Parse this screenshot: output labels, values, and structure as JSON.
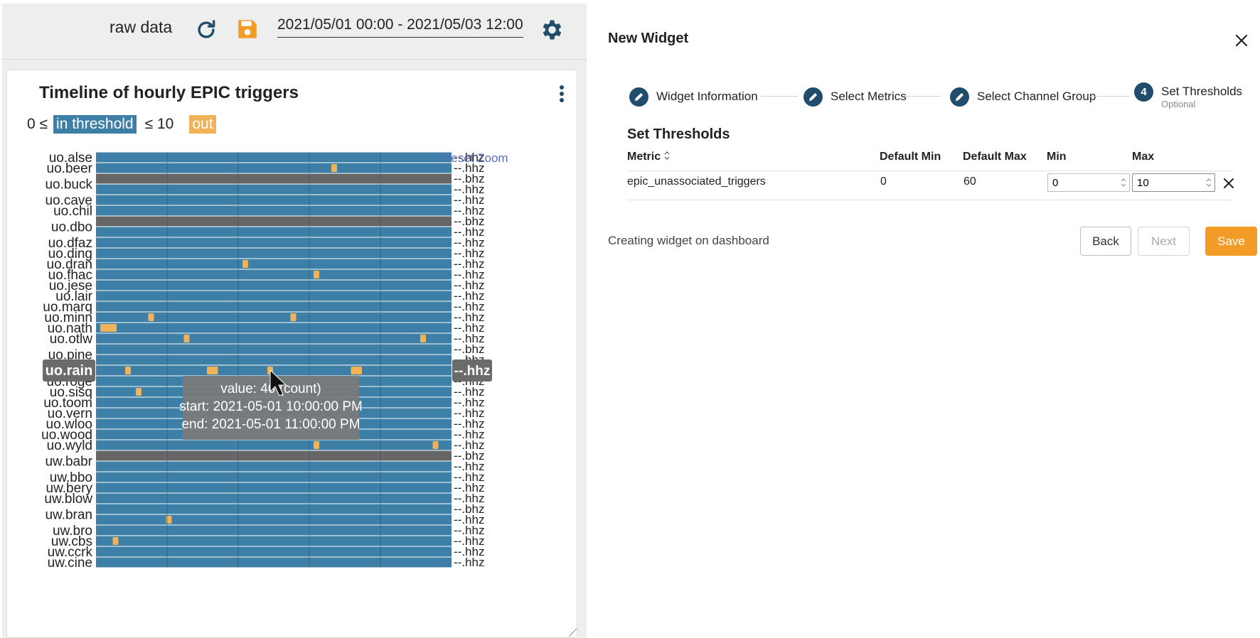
{
  "toolbar": {
    "mode_label": "raw data",
    "date_range": "2021/05/01 00:00 - 2021/05/03 12:00",
    "icons": [
      "refresh-icon",
      "save-icon",
      "gear-icon"
    ]
  },
  "widget": {
    "title": "Timeline of hourly EPIC triggers",
    "legend": {
      "min_prefix": "0 ≤",
      "in_label": "in threshold",
      "max_suffix": "≤ 10",
      "out_label": "out"
    },
    "reset_zoom": "Reset Zoom",
    "colors": {
      "in": "#3d7fa6",
      "out": "#f2b258",
      "no_data": "#666666",
      "highlight_label": "#6b6b6b"
    },
    "highlighted_station": "uo.rain",
    "highlighted_channel": "--.hhz",
    "tooltip": {
      "value": "value: 46 (count)",
      "start": "start: 2021-05-01 10:00:00 PM",
      "end": "end: 2021-05-01 11:00:00 PM"
    }
  },
  "chart_data": {
    "type": "heatmap",
    "title": "Timeline of hourly EPIC triggers",
    "x_range": [
      "2021-05-01 00:00",
      "2021-05-03 12:00"
    ],
    "threshold": {
      "min": 0,
      "max": 10
    },
    "rows": [
      {
        "station": "uo.alse",
        "channel": "--.hhz",
        "status": "in",
        "out_at": []
      },
      {
        "station": "uo.beer",
        "channel": "--.hhz",
        "status": "in",
        "out_at": [
          0.67
        ]
      },
      {
        "station": "uo.buck",
        "channel": "--.bhz",
        "status": "no_data",
        "out_at": []
      },
      {
        "station": "uo.buck",
        "channel": "--.hhz",
        "status": "in",
        "out_at": []
      },
      {
        "station": "uo.cave",
        "channel": "--.hhz",
        "status": "in",
        "out_at": []
      },
      {
        "station": "uo.chil",
        "channel": "--.hhz",
        "status": "in",
        "out_at": []
      },
      {
        "station": "uo.dbo",
        "channel": "--.bhz",
        "status": "no_data",
        "out_at": []
      },
      {
        "station": "uo.dbo",
        "channel": "--.hhz",
        "status": "in",
        "out_at": []
      },
      {
        "station": "uo.dfaz",
        "channel": "--.hhz",
        "status": "in",
        "out_at": []
      },
      {
        "station": "uo.ding",
        "channel": "--.hhz",
        "status": "in",
        "out_at": []
      },
      {
        "station": "uo.dran",
        "channel": "--.hhz",
        "status": "in",
        "out_at": [
          0.42
        ]
      },
      {
        "station": "uo.fhac",
        "channel": "--.hhz",
        "status": "in",
        "out_at": [
          0.62
        ]
      },
      {
        "station": "uo.jese",
        "channel": "--.hhz",
        "status": "in",
        "out_at": []
      },
      {
        "station": "uo.lair",
        "channel": "--.hhz",
        "status": "in",
        "out_at": []
      },
      {
        "station": "uo.marq",
        "channel": "--.hhz",
        "status": "in",
        "out_at": []
      },
      {
        "station": "uo.minn",
        "channel": "--.hhz",
        "status": "in",
        "out_at": [
          0.155,
          0.555
        ]
      },
      {
        "station": "uo.nath",
        "channel": "--.hhz",
        "status": "in",
        "out_at": [
          0.02,
          0.035,
          0.05
        ]
      },
      {
        "station": "uo.otlw",
        "channel": "--.hhz",
        "status": "in",
        "out_at": [
          0.255,
          0.92
        ]
      },
      {
        "station": "uo.pine",
        "channel": "--.bhz",
        "status": "in",
        "out_at": []
      },
      {
        "station": "uo.pine",
        "channel": "--.hhz",
        "status": "in",
        "out_at": []
      },
      {
        "station": "uo.rain",
        "channel": "--.hhz",
        "status": "in",
        "out_at": [
          0.09,
          0.32,
          0.335,
          0.49,
          0.725,
          0.74
        ]
      },
      {
        "station": "uo.roge",
        "channel": "--.hhz",
        "status": "in",
        "out_at": []
      },
      {
        "station": "uo.sisq",
        "channel": "--.hhz",
        "status": "in",
        "out_at": [
          0.12
        ]
      },
      {
        "station": "uo.toom",
        "channel": "--.hhz",
        "status": "in",
        "out_at": []
      },
      {
        "station": "uo.vern",
        "channel": "--.hhz",
        "status": "in",
        "out_at": []
      },
      {
        "station": "uo.wloo",
        "channel": "--.hhz",
        "status": "in",
        "out_at": []
      },
      {
        "station": "uo.wood",
        "channel": "--.hhz",
        "status": "in",
        "out_at": []
      },
      {
        "station": "uo.wyld",
        "channel": "--.hhz",
        "status": "in",
        "out_at": [
          0.62,
          0.955
        ]
      },
      {
        "station": "uw.babr",
        "channel": "--.bhz",
        "status": "no_data",
        "out_at": []
      },
      {
        "station": "uw.babr",
        "channel": "--.hhz",
        "status": "in",
        "out_at": []
      },
      {
        "station": "uw.bbo",
        "channel": "--.hhz",
        "status": "in",
        "out_at": []
      },
      {
        "station": "uw.bery",
        "channel": "--.hhz",
        "status": "in",
        "out_at": []
      },
      {
        "station": "uw.blow",
        "channel": "--.hhz",
        "status": "in",
        "out_at": []
      },
      {
        "station": "uw.bran",
        "channel": "--.bhz",
        "status": "in",
        "out_at": []
      },
      {
        "station": "uw.bran",
        "channel": "--.hhz",
        "status": "in",
        "out_at": [
          0.205
        ]
      },
      {
        "station": "uw.bro",
        "channel": "--.hhz",
        "status": "in",
        "out_at": []
      },
      {
        "station": "uw.cbs",
        "channel": "--.hhz",
        "status": "in",
        "out_at": [
          0.055
        ]
      },
      {
        "station": "uw.ccrk",
        "channel": "--.hhz",
        "status": "in",
        "out_at": []
      },
      {
        "station": "uw.cine",
        "channel": "--.hhz",
        "status": "in",
        "out_at": []
      }
    ],
    "y_tick_labels": [
      "uo.alse",
      "uo.beer",
      "uo.buck",
      "uo.cave",
      "uo.chil",
      "uo.dbo",
      "uo.dfaz",
      "uo.ding",
      "uo.dran",
      "uo.fhac",
      "uo.jese",
      "uo.lair",
      "uo.marq",
      "uo.minn",
      "uo.nath",
      "uo.otlw",
      "uo.pine",
      "uo.rain",
      "uo.roge",
      "uo.sisq",
      "uo.toom",
      "uo.vern",
      "uo.wloo",
      "uo.wood",
      "uo.wyld",
      "uw.babr",
      "uw.bbo",
      "uw.bery",
      "uw.blow",
      "uw.bran",
      "uw.bro",
      "uw.cbs",
      "uw.ccrk",
      "uw.cine"
    ],
    "y_tick_row_index": [
      0,
      1,
      2.5,
      4,
      5,
      6.5,
      8,
      9,
      10,
      11,
      12,
      13,
      14,
      15,
      16,
      17,
      18.5,
      20,
      21,
      22,
      23,
      24,
      25,
      26,
      27,
      28.5,
      30,
      31,
      32,
      33.5,
      35,
      36,
      37,
      38
    ]
  },
  "dialog": {
    "title": "New Widget",
    "steps": [
      {
        "label": "Widget Information",
        "state": "done"
      },
      {
        "label": "Select Metrics",
        "state": "done"
      },
      {
        "label": "Select Channel Group",
        "state": "done"
      },
      {
        "label": "Set Thresholds",
        "number": "4",
        "sublabel": "Optional",
        "state": "active"
      }
    ],
    "section_title": "Set Thresholds",
    "columns": {
      "metric": "Metric",
      "default_min": "Default Min",
      "default_max": "Default Max",
      "min": "Min",
      "max": "Max"
    },
    "row": {
      "metric": "epic_unassociated_triggers",
      "default_min": "0",
      "default_max": "60",
      "min": "0",
      "max": "10"
    },
    "status": "Creating widget on dashboard",
    "back_label": "Back",
    "next_label": "Next",
    "save_label": "Save",
    "accent_color": "#f29b26",
    "step_color": "#1f4d6b"
  }
}
